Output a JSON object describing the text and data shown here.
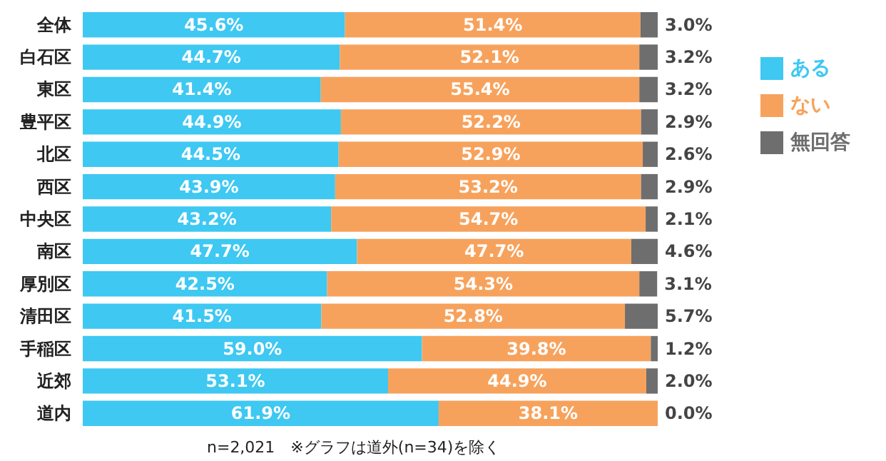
{
  "chart_data": {
    "type": "bar",
    "orientation": "horizontal",
    "stacked": true,
    "legend": "right",
    "tick_labels": "y",
    "xlim": [
      0,
      100
    ],
    "categories": [
      "全体",
      "白石区",
      "東区",
      "豊平区",
      "北区",
      "西区",
      "中央区",
      "南区",
      "厚別区",
      "清田区",
      "手稲区",
      "近郊",
      "道内"
    ],
    "series": [
      {
        "name": "ある",
        "color": "#3ec8f2",
        "values": [
          45.6,
          44.7,
          41.4,
          44.9,
          44.5,
          43.9,
          43.2,
          47.7,
          42.5,
          41.5,
          59.0,
          53.1,
          61.9
        ],
        "value_labels": [
          "45.6%",
          "44.7%",
          "41.4%",
          "44.9%",
          "44.5%",
          "43.9%",
          "43.2%",
          "47.7%",
          "42.5%",
          "41.5%",
          "59.0%",
          "53.1%",
          "61.9%"
        ]
      },
      {
        "name": "ない",
        "color": "#f7a25c",
        "values": [
          51.4,
          52.1,
          55.4,
          52.2,
          52.9,
          53.2,
          54.7,
          47.7,
          54.3,
          52.8,
          39.8,
          44.9,
          38.1
        ],
        "value_labels": [
          "51.4%",
          "52.1%",
          "55.4%",
          "52.2%",
          "52.9%",
          "53.2%",
          "54.7%",
          "47.7%",
          "54.3%",
          "52.8%",
          "39.8%",
          "44.9%",
          "38.1%"
        ]
      },
      {
        "name": "無回答",
        "color": "#6e6e6e",
        "values": [
          3.0,
          3.2,
          3.2,
          2.9,
          2.6,
          2.9,
          2.1,
          4.6,
          3.1,
          5.7,
          1.2,
          2.0,
          0.0
        ],
        "value_labels": [
          "3.0%",
          "3.2%",
          "3.2%",
          "2.9%",
          "2.6%",
          "2.9%",
          "2.1%",
          "4.6%",
          "3.1%",
          "5.7%",
          "1.2%",
          "2.0%",
          "0.0%"
        ]
      }
    ],
    "annotations": [
      "n=2,021　※グラフは道外(n=34)を除く"
    ]
  }
}
